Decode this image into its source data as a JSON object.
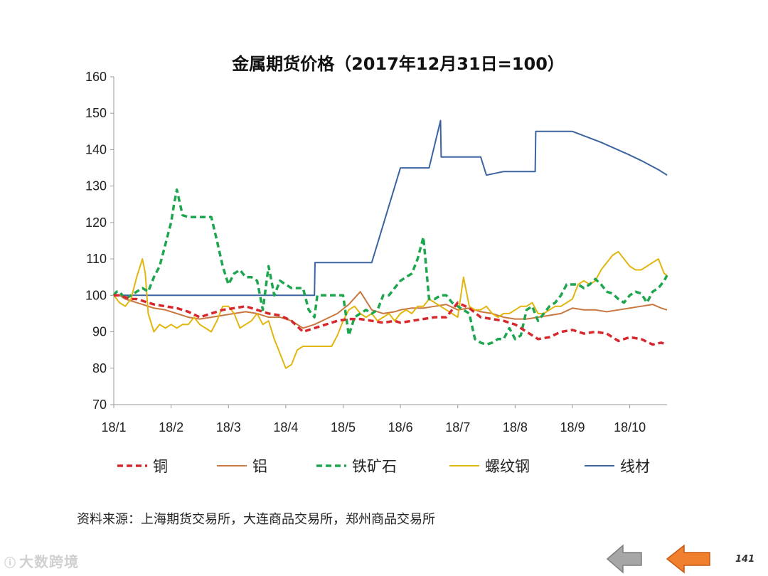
{
  "footer": {
    "source": "资料来源：上海期货交易所，大连商品交易所，郑州商品交易所",
    "watermark": "大数跨境",
    "page_number": "141"
  },
  "colors": {
    "copper": "#d7282d",
    "aluminum": "#c8773f",
    "iron_ore": "#1ea64f",
    "rebar": "#e2b50f",
    "wire_rod": "#3b64a1",
    "nav_prev": "#a6a6a6",
    "nav_next": "#f07f2e"
  },
  "chart_data": {
    "type": "line",
    "title": "金属期货价格（2017年12月31日=100）",
    "xlabel": "",
    "ylabel": "",
    "ylim": [
      70,
      160
    ],
    "yticks": [
      70,
      80,
      90,
      100,
      110,
      120,
      130,
      140,
      150,
      160
    ],
    "xlim": [
      0,
      9.65
    ],
    "xtick_labels": [
      "18/1",
      "18/2",
      "18/3",
      "18/4",
      "18/5",
      "18/6",
      "18/7",
      "18/8",
      "18/9",
      "18/10"
    ],
    "legend_position": "bottom",
    "grid": false,
    "series": [
      {
        "name": "铜",
        "style": "dashed",
        "x": [
          0,
          0.1,
          0.2,
          0.3,
          0.4,
          0.5,
          0.7,
          0.9,
          1.1,
          1.3,
          1.5,
          1.7,
          1.9,
          2.1,
          2.3,
          2.5,
          2.7,
          2.9,
          3.1,
          3.3,
          3.5,
          3.7,
          3.9,
          4.1,
          4.3,
          4.5,
          4.7,
          4.9,
          5.0,
          5.2,
          5.4,
          5.6,
          5.8,
          6.0,
          6.2,
          6.4,
          6.6,
          6.8,
          7.0,
          7.2,
          7.4,
          7.6,
          7.8,
          8.0,
          8.2,
          8.4,
          8.6,
          8.8,
          9.0,
          9.2,
          9.4,
          9.55,
          9.65
        ],
        "values": [
          100,
          100,
          99.5,
          99,
          99,
          98.5,
          97.5,
          97,
          96.5,
          95.5,
          94,
          95,
          96,
          96.5,
          97,
          96,
          95,
          94.5,
          93,
          90,
          91,
          92,
          93,
          93.5,
          93.5,
          93,
          92.5,
          93,
          92.5,
          93,
          93.5,
          94,
          94,
          98,
          96.5,
          94,
          93.5,
          93,
          92,
          90,
          88,
          88.5,
          90,
          90.5,
          89.5,
          90,
          89.5,
          87.5,
          88.5,
          88,
          86.5,
          87,
          86.5
        ]
      },
      {
        "name": "铝",
        "style": "solid",
        "x": [
          0,
          0.1,
          0.2,
          0.3,
          0.4,
          0.5,
          0.7,
          0.9,
          1.1,
          1.3,
          1.5,
          1.7,
          1.9,
          2.1,
          2.3,
          2.5,
          2.7,
          2.9,
          3.1,
          3.3,
          3.5,
          3.7,
          3.9,
          4.1,
          4.3,
          4.5,
          4.7,
          4.9,
          5.0,
          5.2,
          5.4,
          5.6,
          5.8,
          6.0,
          6.2,
          6.4,
          6.6,
          6.8,
          7.0,
          7.2,
          7.4,
          7.6,
          7.8,
          8.0,
          8.2,
          8.4,
          8.6,
          8.8,
          9.0,
          9.2,
          9.4,
          9.55,
          9.65
        ],
        "values": [
          100,
          100,
          99,
          98.5,
          98,
          97.5,
          96.5,
          96,
          95,
          94,
          93.5,
          94,
          94.5,
          95,
          95.5,
          95,
          94,
          94,
          93,
          91,
          92,
          93.5,
          95,
          97.5,
          101,
          96,
          95,
          95.5,
          96,
          96.5,
          96.5,
          97,
          97.5,
          96,
          96.5,
          95.5,
          95,
          94,
          93.5,
          93.5,
          94,
          94.5,
          95,
          96.5,
          96,
          96,
          95.5,
          96,
          96.5,
          97,
          97.5,
          96.5,
          96
        ]
      },
      {
        "name": "铁矿石",
        "style": "dashed",
        "x": [
          0,
          0.05,
          0.1,
          0.2,
          0.3,
          0.4,
          0.5,
          0.6,
          0.7,
          0.8,
          0.9,
          1.0,
          1.05,
          1.1,
          1.2,
          1.3,
          1.4,
          1.5,
          1.6,
          1.7,
          1.8,
          1.9,
          2.0,
          2.1,
          2.2,
          2.3,
          2.4,
          2.5,
          2.6,
          2.7,
          2.8,
          2.9,
          3.0,
          3.1,
          3.2,
          3.3,
          3.4,
          3.5,
          3.55,
          3.6,
          3.7,
          3.8,
          3.9,
          4.0,
          4.1,
          4.2,
          4.3,
          4.4,
          4.5,
          4.6,
          4.7,
          4.8,
          4.9,
          5.0,
          5.1,
          5.2,
          5.3,
          5.4,
          5.5,
          5.6,
          5.7,
          5.8,
          5.9,
          6.0,
          6.1,
          6.2,
          6.3,
          6.4,
          6.5,
          6.6,
          6.7,
          6.8,
          6.9,
          7.0,
          7.1,
          7.2,
          7.3,
          7.4,
          7.5,
          7.6,
          7.7,
          7.8,
          7.9,
          8.0,
          8.1,
          8.2,
          8.3,
          8.4,
          8.5,
          8.6,
          8.7,
          8.8,
          8.9,
          9.0,
          9.1,
          9.2,
          9.3,
          9.4,
          9.5,
          9.6,
          9.65
        ],
        "values": [
          100,
          101,
          101,
          99,
          100,
          101,
          102,
          101,
          105,
          108,
          114,
          120,
          125,
          129,
          122,
          121.5,
          121.5,
          121.5,
          121.5,
          121.5,
          115,
          108,
          103,
          106,
          107,
          105,
          105,
          104,
          96,
          108,
          100,
          104,
          103,
          102,
          102,
          102,
          96,
          94,
          100,
          100,
          100,
          100,
          100,
          100,
          89,
          94,
          95,
          96,
          95,
          96,
          100,
          100,
          102,
          104,
          105,
          106,
          110,
          116,
          99,
          99,
          100,
          100,
          98,
          97,
          96,
          95,
          88,
          87,
          86.5,
          87,
          88,
          88,
          91,
          88,
          89,
          96,
          97,
          93,
          95,
          97,
          98,
          100,
          103,
          103,
          103,
          102,
          103,
          104.5,
          103,
          101,
          100.5,
          99,
          98,
          100,
          101,
          100.5,
          98,
          101,
          102,
          104,
          105.5
        ]
      },
      {
        "name": "螺纹钢",
        "style": "solid",
        "x": [
          0,
          0.1,
          0.2,
          0.3,
          0.4,
          0.5,
          0.55,
          0.6,
          0.7,
          0.8,
          0.9,
          1.0,
          1.1,
          1.2,
          1.3,
          1.4,
          1.5,
          1.6,
          1.7,
          1.8,
          1.9,
          2.0,
          2.1,
          2.2,
          2.3,
          2.4,
          2.5,
          2.6,
          2.7,
          2.8,
          2.9,
          3.0,
          3.1,
          3.2,
          3.3,
          3.4,
          3.5,
          3.6,
          3.7,
          3.8,
          3.9,
          4.0,
          4.1,
          4.2,
          4.3,
          4.4,
          4.5,
          4.6,
          4.7,
          4.8,
          4.9,
          5.0,
          5.1,
          5.2,
          5.3,
          5.4,
          5.5,
          5.6,
          5.7,
          5.8,
          5.9,
          6.0,
          6.1,
          6.2,
          6.3,
          6.4,
          6.5,
          6.6,
          6.7,
          6.8,
          6.9,
          7.0,
          7.1,
          7.2,
          7.3,
          7.4,
          7.5,
          7.6,
          7.7,
          7.8,
          7.9,
          8.0,
          8.1,
          8.2,
          8.3,
          8.4,
          8.5,
          8.6,
          8.7,
          8.8,
          8.9,
          9.0,
          9.1,
          9.2,
          9.3,
          9.4,
          9.5,
          9.6,
          9.65
        ],
        "values": [
          100,
          98,
          97,
          99,
          105,
          110,
          106,
          95,
          90,
          92,
          91,
          92,
          91,
          92,
          92,
          94,
          92,
          91,
          90,
          93,
          97,
          97,
          95,
          91,
          92,
          93,
          95,
          92,
          93,
          88,
          84,
          80,
          81,
          85,
          86,
          86,
          86,
          86,
          86,
          86,
          89,
          93,
          96,
          97,
          95,
          94,
          95,
          93,
          94,
          95,
          93,
          95,
          96,
          95,
          97,
          97,
          99,
          98,
          97,
          96,
          95,
          94,
          105,
          97,
          96,
          96,
          97,
          95,
          94,
          95,
          95,
          96,
          97,
          97,
          98,
          95,
          95,
          96,
          97,
          97,
          98,
          99,
          103,
          104,
          103,
          104,
          107,
          109,
          111,
          112,
          110,
          108,
          107,
          107,
          108,
          109,
          110,
          106,
          105.5
        ]
      },
      {
        "name": "线材",
        "style": "solid",
        "x": [
          0,
          0.1,
          0.2,
          0.5,
          1.0,
          2.0,
          3.0,
          3.5,
          3.51,
          4.3,
          4.35,
          4.5,
          5.0,
          5.25,
          5.26,
          5.5,
          5.7,
          5.71,
          5.9,
          6.1,
          6.3,
          6.4,
          6.5,
          6.8,
          7.0,
          7.2,
          7.3,
          7.35,
          7.36,
          7.5,
          8.0,
          8.5,
          9.0,
          9.2,
          9.5,
          9.6,
          9.65
        ],
        "values": [
          100,
          100,
          100,
          100,
          100,
          100,
          100,
          100,
          109,
          109,
          109,
          109,
          135,
          135,
          135,
          135,
          148,
          138,
          138,
          138,
          138,
          138,
          133,
          134,
          134,
          134,
          134,
          134,
          145,
          145,
          145,
          142,
          138.5,
          137,
          134.5,
          133.5,
          133
        ]
      }
    ]
  }
}
